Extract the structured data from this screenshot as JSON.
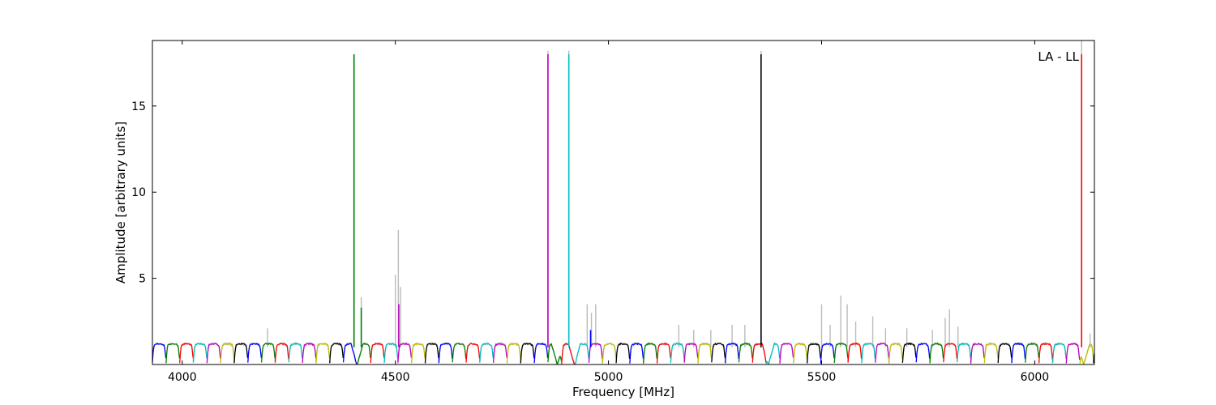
{
  "chart_data": {
    "type": "line",
    "title": "",
    "annotation": "LA - LL",
    "xlabel": "Frequency [MHz]",
    "ylabel": "Amplitude [arbitrary units]",
    "xlim": [
      3930,
      6140
    ],
    "ylim": [
      0,
      18.8
    ],
    "xticks": [
      4000,
      4500,
      5000,
      5500,
      6000
    ],
    "yticks": [
      5,
      10,
      15
    ],
    "grid": false,
    "legend": "none",
    "background_color": "#bbbbbb",
    "band_width": 32,
    "colors": [
      "#0000ff",
      "#008000",
      "#ff0000",
      "#00bfbf",
      "#bf00bf",
      "#bfbf00",
      "#000000"
    ],
    "spikes": [
      {
        "x": 4403,
        "y": 18.0,
        "color": "#008000"
      },
      {
        "x": 4420,
        "y": 3.3,
        "color": "#008000"
      },
      {
        "x": 4508,
        "y": 3.5,
        "color": "#bf00bf"
      },
      {
        "x": 4858,
        "y": 18.0,
        "color": "#bf00bf"
      },
      {
        "x": 4907,
        "y": 18.0,
        "color": "#00bfbf"
      },
      {
        "x": 4958,
        "y": 2.0,
        "color": "#0000ff"
      },
      {
        "x": 5358,
        "y": 18.0,
        "color": "#000000"
      },
      {
        "x": 6110,
        "y": 18.0,
        "color": "#ff0000"
      }
    ],
    "background_spikes": [
      {
        "x": 4200,
        "y": 2.1
      },
      {
        "x": 4420,
        "y": 3.9
      },
      {
        "x": 4500,
        "y": 5.2
      },
      {
        "x": 4507,
        "y": 7.8
      },
      {
        "x": 4512,
        "y": 4.5
      },
      {
        "x": 4858,
        "y": 18.2
      },
      {
        "x": 4907,
        "y": 18.2
      },
      {
        "x": 4950,
        "y": 3.5
      },
      {
        "x": 4960,
        "y": 3.0
      },
      {
        "x": 4970,
        "y": 3.5
      },
      {
        "x": 5165,
        "y": 2.3
      },
      {
        "x": 5200,
        "y": 2.0
      },
      {
        "x": 5240,
        "y": 2.0
      },
      {
        "x": 5290,
        "y": 2.3
      },
      {
        "x": 5320,
        "y": 2.3
      },
      {
        "x": 5358,
        "y": 18.2
      },
      {
        "x": 5500,
        "y": 3.5
      },
      {
        "x": 5520,
        "y": 2.3
      },
      {
        "x": 5545,
        "y": 4.0
      },
      {
        "x": 5560,
        "y": 3.5
      },
      {
        "x": 5580,
        "y": 2.5
      },
      {
        "x": 5620,
        "y": 2.8
      },
      {
        "x": 5650,
        "y": 2.1
      },
      {
        "x": 5700,
        "y": 2.1
      },
      {
        "x": 5760,
        "y": 2.0
      },
      {
        "x": 5790,
        "y": 2.7
      },
      {
        "x": 5800,
        "y": 3.2
      },
      {
        "x": 5820,
        "y": 2.2
      },
      {
        "x": 6110,
        "y": 18.8
      },
      {
        "x": 6130,
        "y": 1.8
      }
    ],
    "notches": [
      {
        "x": 4410,
        "depth": 0.0
      },
      {
        "x": 4880,
        "depth": 0.0
      },
      {
        "x": 4920,
        "depth": 0.0
      },
      {
        "x": 5375,
        "depth": 0.0
      },
      {
        "x": 6115,
        "depth": 0.0
      }
    ]
  }
}
